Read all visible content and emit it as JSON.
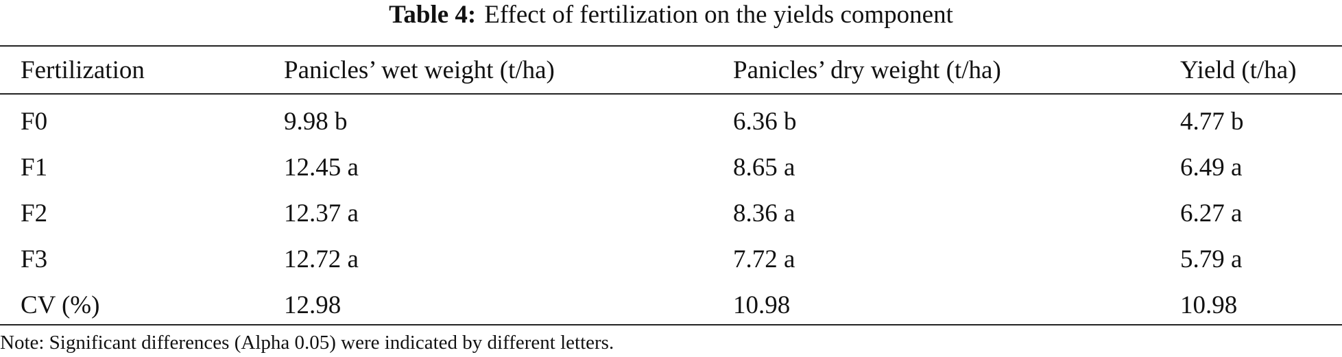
{
  "caption": {
    "label": "Table 4:",
    "text": "Effect of fertilization on the yields component"
  },
  "table": {
    "headers": [
      "Fertilization",
      "Panicles’ wet weight (t/ha)",
      "Panicles’ dry weight (t/ha)",
      "Yield (t/ha)"
    ],
    "rows": [
      [
        "F0",
        "9.98 b",
        "6.36 b",
        "4.77 b"
      ],
      [
        "F1",
        "12.45 a",
        "8.65 a",
        "6.49 a"
      ],
      [
        "F2",
        "12.37 a",
        "8.36 a",
        "6.27 a"
      ],
      [
        "F3",
        "12.72 a",
        "7.72 a",
        "5.79 a"
      ],
      [
        "CV (%)",
        "12.98",
        "10.98",
        "10.98"
      ]
    ]
  },
  "note": "Note: Significant differences (Alpha 0.05) were indicated by different letters."
}
